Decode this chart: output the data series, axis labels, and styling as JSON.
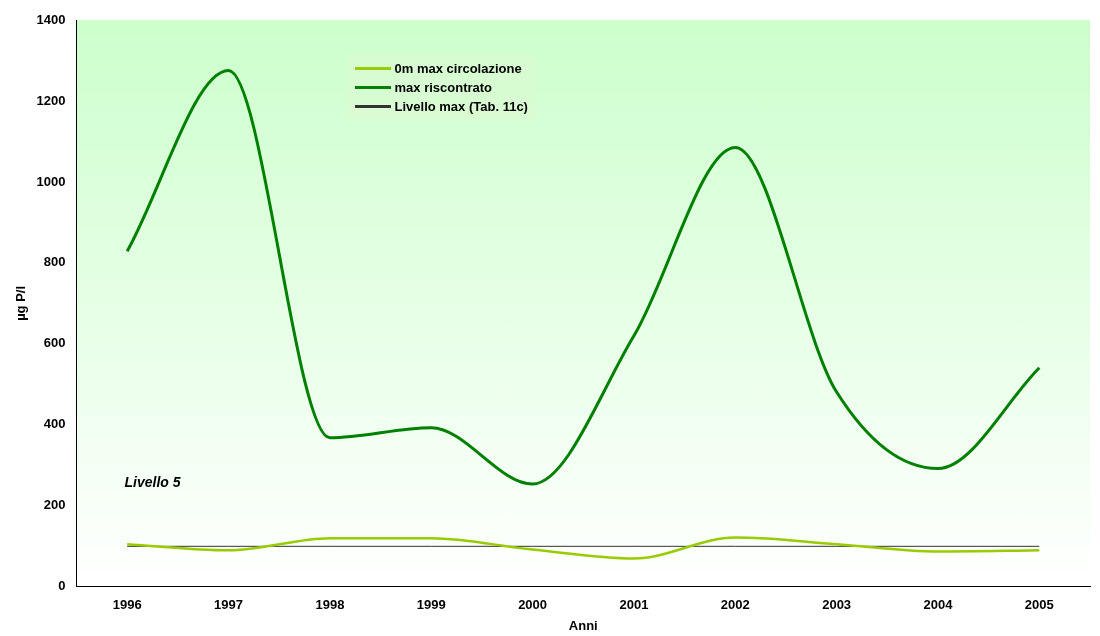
{
  "chart_data": {
    "type": "line",
    "xlabel": "Anni",
    "ylabel": "µg P/l",
    "categories": [
      "1996",
      "1997",
      "1998",
      "1999",
      "2000",
      "2001",
      "2002",
      "2003",
      "2004",
      "2005"
    ],
    "series": [
      {
        "name": "0m max circolazione",
        "color": "#99cc00",
        "values": [
          105,
          90,
          120,
          120,
          92,
          70,
          122,
          105,
          87,
          90
        ]
      },
      {
        "name": "max riscontrato",
        "color": "#008000",
        "values": [
          829,
          1275,
          368,
          393,
          254,
          620,
          1085,
          481,
          292,
          541
        ]
      },
      {
        "name": "Livello max (Tab. 11c)",
        "color": "#333333",
        "values": [
          100,
          100,
          100,
          100,
          100,
          100,
          100,
          100,
          100,
          100
        ]
      }
    ],
    "ylim": [
      0,
      1400
    ],
    "yticks": [
      0,
      200,
      400,
      600,
      800,
      1000,
      1200,
      1400
    ],
    "grid": false,
    "legend": "top left",
    "marker": "none",
    "line_style": "solid",
    "annotations": [
      "Livello 5"
    ]
  }
}
